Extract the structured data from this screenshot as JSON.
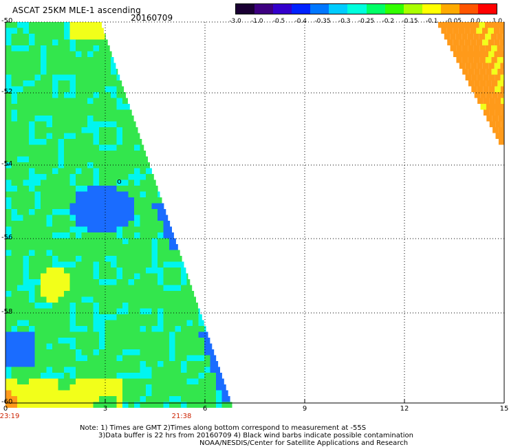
{
  "header": {
    "title": "ASCAT 25KM MLE-1 ascending",
    "date": "20160709"
  },
  "colorbar": {
    "labels": [
      "-3.0",
      "-1.0",
      "-0.5",
      "-0.4",
      "-0.35",
      "-0.3",
      "-0.25",
      "-0.2",
      "-0.15",
      "-0.1",
      "-0.05",
      "0.0",
      "1.0"
    ],
    "colors": [
      "#1a0033",
      "#3d0080",
      "#3300cc",
      "#0022ff",
      "#0077ff",
      "#00ccff",
      "#00ffdd",
      "#00ff66",
      "#33ff00",
      "#aaff00",
      "#ffff00",
      "#ffaa00",
      "#ff5500",
      "#ff0000"
    ]
  },
  "axes": {
    "y_labels": [
      "-50",
      "-52",
      "-54",
      "-56",
      "-58",
      "-60"
    ],
    "x_labels": [
      "0",
      "3",
      "6",
      "9",
      "12",
      "15"
    ],
    "time_labels": [
      "23:19",
      "21:38"
    ]
  },
  "notes": [
    "Note: 1) Times are GMT 2)Times along bottom correspond to measurement at -55S",
    "3)Data buffer is 22 hrs from 20160709 4) Black wind barbs indicate possible contamination",
    "NOAA/NESDIS/Center for Satellite Applications and Research"
  ],
  "map_marker": "o",
  "colors": {
    "grid": "#000000",
    "green": "#33e64d",
    "cyan": "#00f5f0",
    "blue": "#1a6cff",
    "yellow": "#f2ff1a",
    "orange": "#ff9a1a",
    "time_label": "#cc2200"
  }
}
